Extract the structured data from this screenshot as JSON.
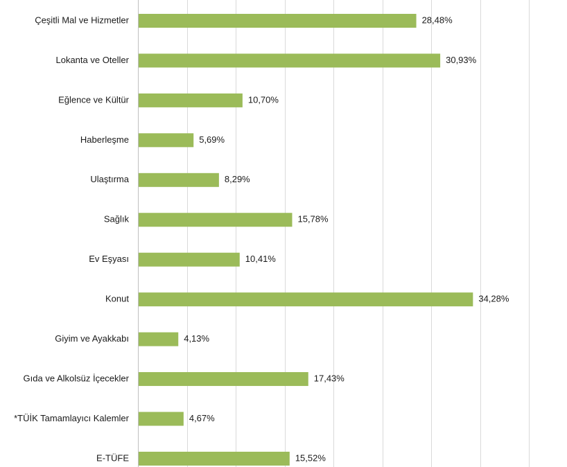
{
  "chart_data": {
    "type": "bar",
    "orientation": "horizontal",
    "title": "",
    "xlabel": "",
    "ylabel": "",
    "xlim": [
      0,
      40
    ],
    "grid": true,
    "bar_color": "#9bbb59",
    "value_suffix": "%",
    "categories": [
      "Çeşitli Mal ve Hizmetler",
      "Lokanta ve Oteller",
      "Eğlence ve Kültür",
      "Haberleşme",
      "Ulaştırma",
      "Sağlık",
      "Ev Eşyası",
      "Konut",
      "Giyim ve Ayakkabı",
      "Gıda ve Alkolsüz İçecekler",
      "*TÜİK Tamamlayıcı Kalemler",
      "E-TÜFE"
    ],
    "values": [
      28.48,
      30.93,
      10.7,
      5.69,
      8.29,
      15.78,
      10.41,
      34.28,
      4.13,
      17.43,
      4.67,
      15.52
    ],
    "value_labels": [
      "28,48%",
      "30,93%",
      "10,70%",
      "5,69%",
      "8,29%",
      "15,78%",
      "10,41%",
      "34,28%",
      "4,13%",
      "17,43%",
      "4,67%",
      "15,52%"
    ]
  }
}
